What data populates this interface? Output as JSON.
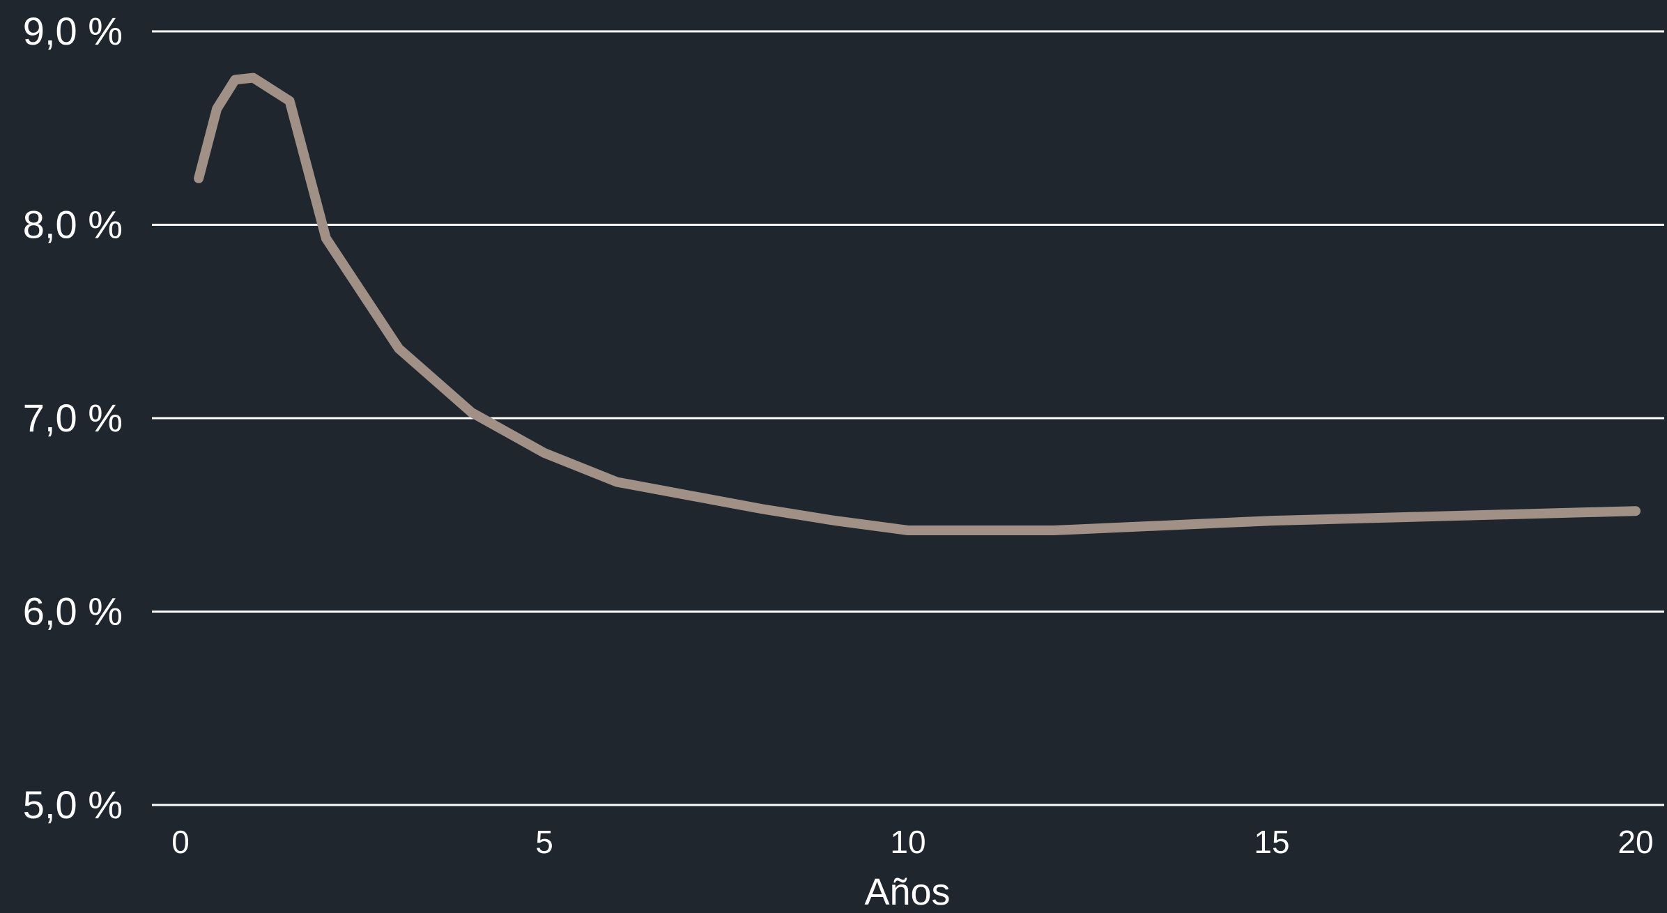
{
  "chart_data": {
    "type": "line",
    "title": "",
    "xlabel": "Años",
    "ylabel": "",
    "xlim": [
      0,
      20
    ],
    "ylim": [
      5.0,
      9.0
    ],
    "x_ticks": [
      0,
      5,
      10,
      15,
      20
    ],
    "x_tick_labels": [
      "0",
      "5",
      "10",
      "15",
      "20"
    ],
    "y_ticks": [
      5.0,
      6.0,
      7.0,
      8.0,
      9.0
    ],
    "y_tick_labels": [
      "5,0 %",
      "6,0 %",
      "7,0 %",
      "8,0 %",
      "9,0 %"
    ],
    "grid": "horizontal",
    "legend": "none",
    "series": [
      {
        "x": [
          0.25,
          0.5,
          0.75,
          1,
          1.5,
          2,
          3,
          4,
          5,
          6,
          7,
          8,
          9,
          10,
          12,
          15,
          20
        ],
        "values": [
          8.24,
          8.6,
          8.75,
          8.76,
          8.64,
          7.93,
          7.36,
          7.03,
          6.82,
          6.67,
          6.6,
          6.53,
          6.47,
          6.42,
          6.42,
          6.47,
          6.52
        ],
        "color": "#a09086"
      }
    ],
    "colors": {
      "background": "#1f262e",
      "grid": "#ffffff",
      "text": "#ffffff"
    }
  }
}
